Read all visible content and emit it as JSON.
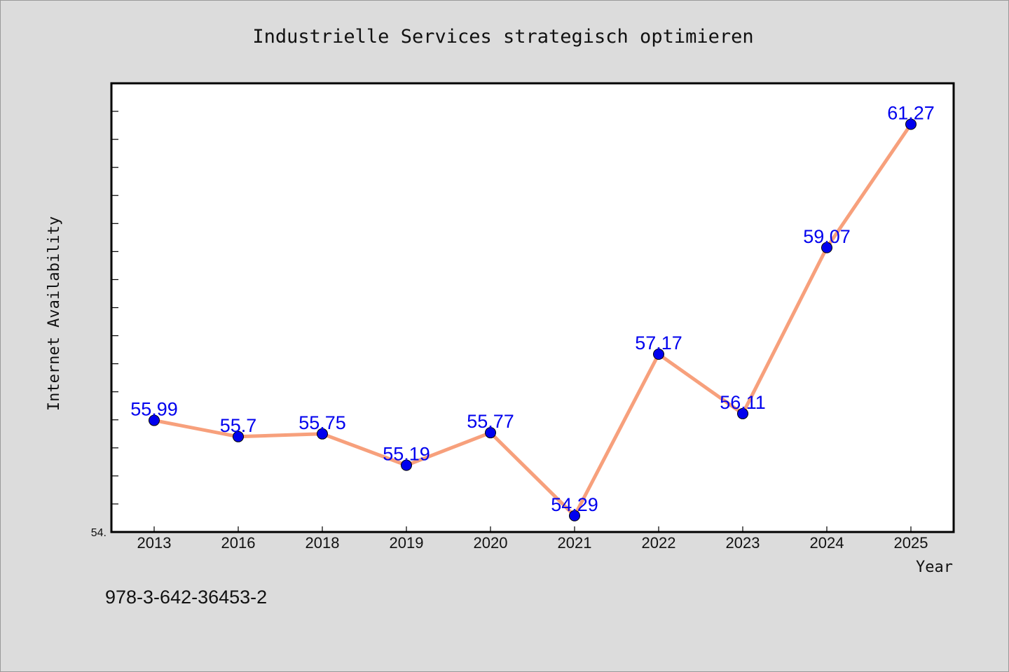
{
  "chart_data": {
    "type": "line",
    "title": "Industrielle Services strategisch optimieren",
    "xlabel": "Year",
    "ylabel": "Internet Availability",
    "categories": [
      "2013",
      "2016",
      "2018",
      "2019",
      "2020",
      "2021",
      "2022",
      "2023",
      "2024",
      "2025"
    ],
    "series": [
      {
        "values": [
          55.99,
          55.7,
          55.75,
          55.19,
          55.77,
          54.29,
          57.17,
          56.11,
          59.07,
          61.27
        ]
      }
    ],
    "data_labels": [
      "55.99",
      "55.7",
      "55.75",
      "55.19",
      "55.77",
      "54.29",
      "57.17",
      "56.11",
      "59.07",
      "61.27"
    ],
    "ylim": [
      54.0,
      62.0
    ],
    "y_min_label": "54.",
    "grid": false,
    "colors": {
      "line": "#f7a07c",
      "marker": "#0000ee",
      "label": "#0000ee",
      "plot_bg": "#ffffff",
      "page_bg": "#dcdcdc"
    }
  },
  "footer": {
    "code": "978-3-642-36453-2"
  }
}
